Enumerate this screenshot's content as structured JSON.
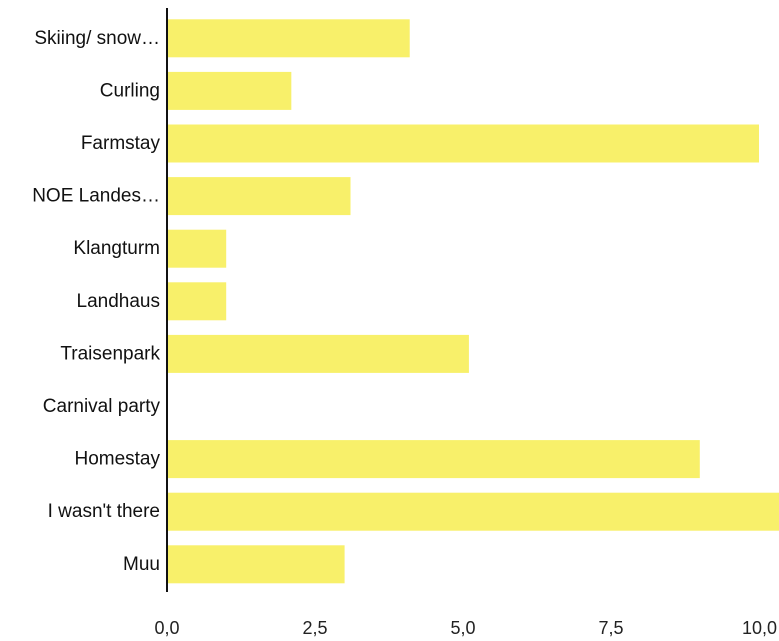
{
  "chart_data": {
    "type": "bar",
    "orientation": "horizontal",
    "categories": [
      "Skiing/ snow…",
      "Curling",
      "Farmstay",
      "NOE Landes…",
      "Klangturm",
      "Landhaus",
      "Traisenpark",
      "Carnival party",
      "Homestay",
      "I wasn't there",
      "Muu"
    ],
    "values": [
      4.1,
      2.1,
      10.0,
      3.1,
      1.0,
      1.0,
      5.1,
      0,
      9.0,
      11.0,
      3.0
    ],
    "xlim": [
      0,
      10.8
    ],
    "xticks": [
      0,
      2.5,
      5,
      7.5,
      10
    ],
    "xtick_labels": [
      "0,0",
      "2,5",
      "5,0",
      "7,5",
      "10,0"
    ],
    "title": "",
    "xlabel": "",
    "ylabel": "",
    "grid": false,
    "legend": "none",
    "bar_color": "#F8F06A",
    "axis_color": "#111111"
  }
}
